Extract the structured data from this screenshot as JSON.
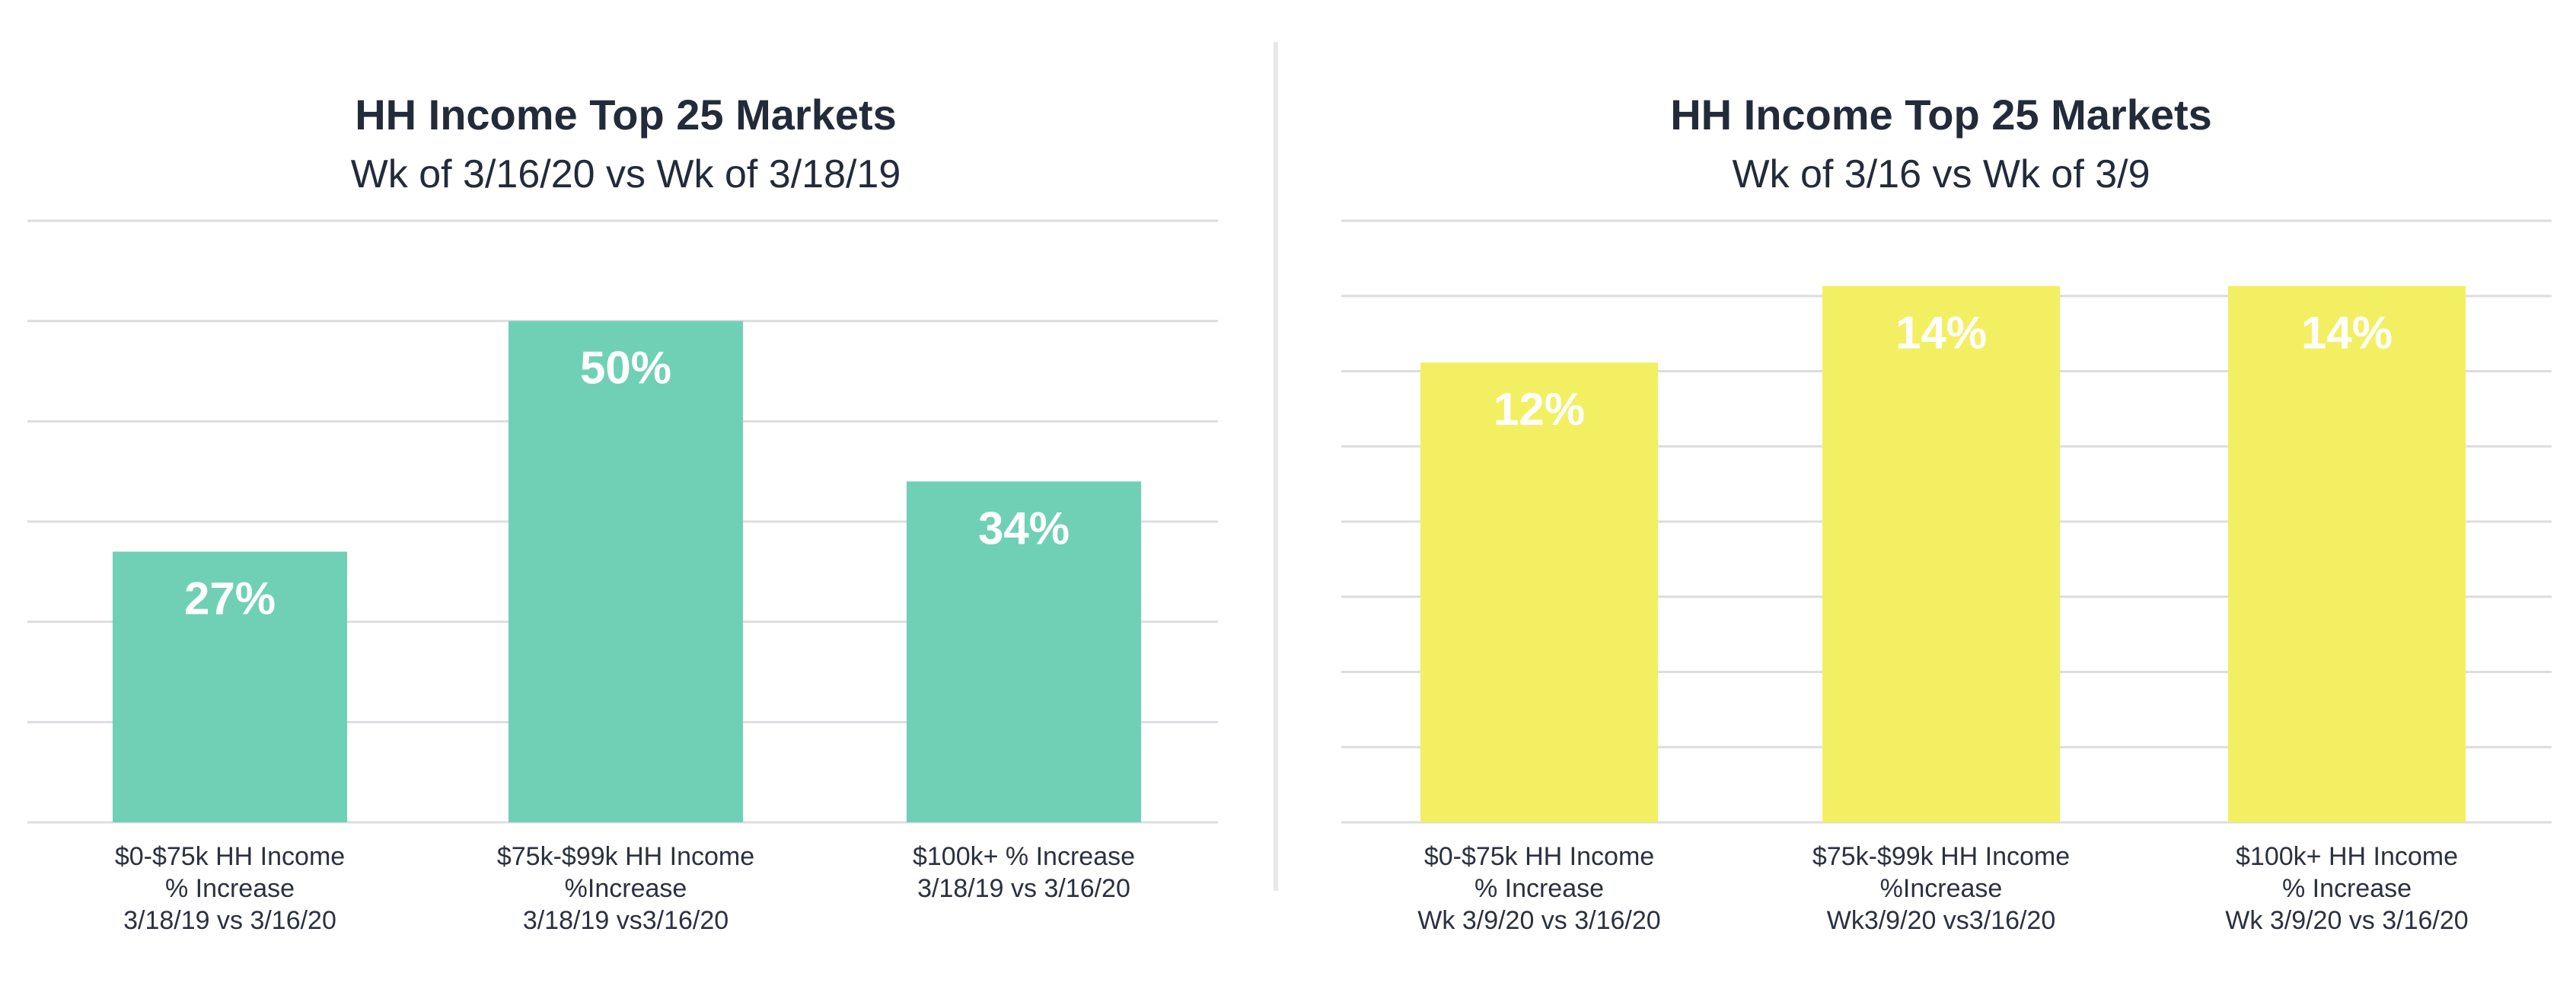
{
  "colors": {
    "left_bar": "#6fd0b6",
    "right_bar": "#f3ef63",
    "grid": "#dcdde0",
    "divider": "#e8e8ea",
    "text": "#232b3a"
  },
  "chart_data": [
    {
      "type": "bar",
      "title": "HH Income Top 25 Markets",
      "subtitle": "Wk of 3/16/20 vs Wk of 3/18/19",
      "categories": [
        [
          "$0-$75k HH Income",
          "% Increase",
          "3/18/19 vs 3/16/20"
        ],
        [
          "$75k-$99k HH Income",
          "%Increase",
          "3/18/19 vs3/16/20"
        ],
        [
          "$100k+ % Increase",
          "3/18/19 vs 3/16/20"
        ]
      ],
      "values": [
        27,
        50,
        34
      ],
      "value_labels": [
        "27%",
        "50%",
        "34%"
      ],
      "ylim": [
        0,
        60
      ],
      "grid": true,
      "grid_lines": 6,
      "xlabel": "",
      "ylabel": ""
    },
    {
      "type": "bar",
      "title": "HH Income Top 25 Markets",
      "subtitle": "Wk of 3/16 vs Wk of 3/9",
      "categories": [
        [
          "$0-$75k HH Income",
          "% Increase",
          "Wk 3/9/20 vs 3/16/20"
        ],
        [
          "$75k-$99k HH Income",
          "%Increase",
          "Wk3/9/20 vs3/16/20"
        ],
        [
          "$100k+ HH Income",
          "% Increase",
          "Wk 3/9/20 vs 3/16/20"
        ]
      ],
      "values": [
        12,
        14,
        14
      ],
      "value_labels": [
        "12%",
        "14%",
        "14%"
      ],
      "ylim": [
        0,
        15.7
      ],
      "grid": true,
      "grid_lines": 8,
      "xlabel": "",
      "ylabel": ""
    }
  ]
}
